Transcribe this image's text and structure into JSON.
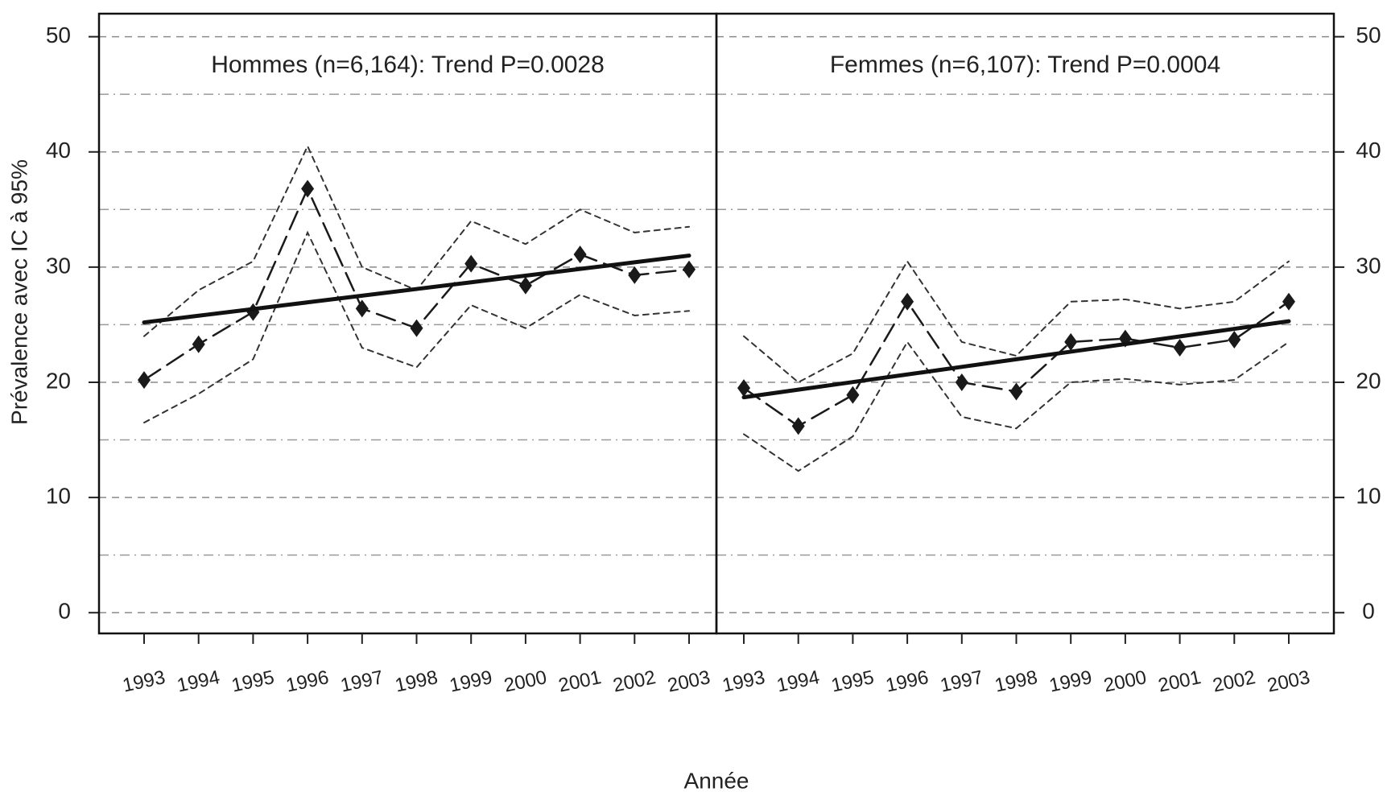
{
  "chart_data": {
    "type": "line",
    "y_label": "Prévalence avec IC à 95%",
    "x_label": "Année",
    "ylim": [
      -1.8,
      52
    ],
    "yticks": [
      0,
      10,
      20,
      30,
      40,
      50
    ],
    "minor_grid": [
      5,
      15,
      25,
      35,
      45
    ],
    "grid": true,
    "panels": [
      {
        "title": "Hommes (n=6,164): Trend P=0.0028",
        "categories": [
          "1993",
          "1994",
          "1995",
          "1996",
          "1997",
          "1998",
          "1999",
          "2000",
          "2001",
          "2002",
          "2003"
        ],
        "series": [
          {
            "color": "#333333",
            "style": "short-dash",
            "values": [
              24,
              28,
              30.5,
              40.5,
              30,
              28,
              34,
              32,
              35,
              33,
              33.5
            ]
          },
          {
            "color": "#333333",
            "style": "short-dash",
            "values": [
              16.5,
              19,
              22,
              33,
              23,
              21.3,
              26.7,
              24.7,
              27.6,
              25.8,
              26.2
            ]
          },
          {
            "color": "#1a1a1a",
            "style": "long-dash",
            "marker": "diamond",
            "values": [
              20.2,
              23.3,
              26.1,
              36.8,
              26.4,
              24.7,
              30.3,
              28.4,
              31.1,
              29.3,
              29.8
            ]
          },
          {
            "color": "#111111",
            "style": "solid",
            "values": [
              25.2,
              25.78,
              26.36,
              26.94,
              27.52,
              28.1,
              28.68,
              29.26,
              29.84,
              30.42,
              31.0
            ]
          }
        ]
      },
      {
        "title": "Femmes (n=6,107): Trend P=0.0004",
        "categories": [
          "1993",
          "1994",
          "1995",
          "1996",
          "1997",
          "1998",
          "1999",
          "2000",
          "2001",
          "2002",
          "2003"
        ],
        "series": [
          {
            "color": "#333333",
            "style": "short-dash",
            "values": [
              24,
              20,
              22.5,
              30.5,
              23.5,
              22.3,
              27,
              27.2,
              26.4,
              27,
              30.5
            ]
          },
          {
            "color": "#333333",
            "style": "short-dash",
            "values": [
              15.5,
              12.3,
              15.3,
              23.5,
              17,
              16,
              20,
              20.3,
              19.8,
              20.2,
              23.5
            ]
          },
          {
            "color": "#1a1a1a",
            "style": "long-dash",
            "marker": "diamond",
            "values": [
              19.5,
              16.2,
              18.9,
              27,
              20,
              19.2,
              23.5,
              23.8,
              23,
              23.7,
              27
            ]
          },
          {
            "color": "#111111",
            "style": "solid",
            "values": [
              18.7,
              19.36,
              20.02,
              20.68,
              21.34,
              22,
              22.66,
              23.32,
              23.98,
              24.64,
              25.3
            ]
          }
        ]
      }
    ]
  }
}
